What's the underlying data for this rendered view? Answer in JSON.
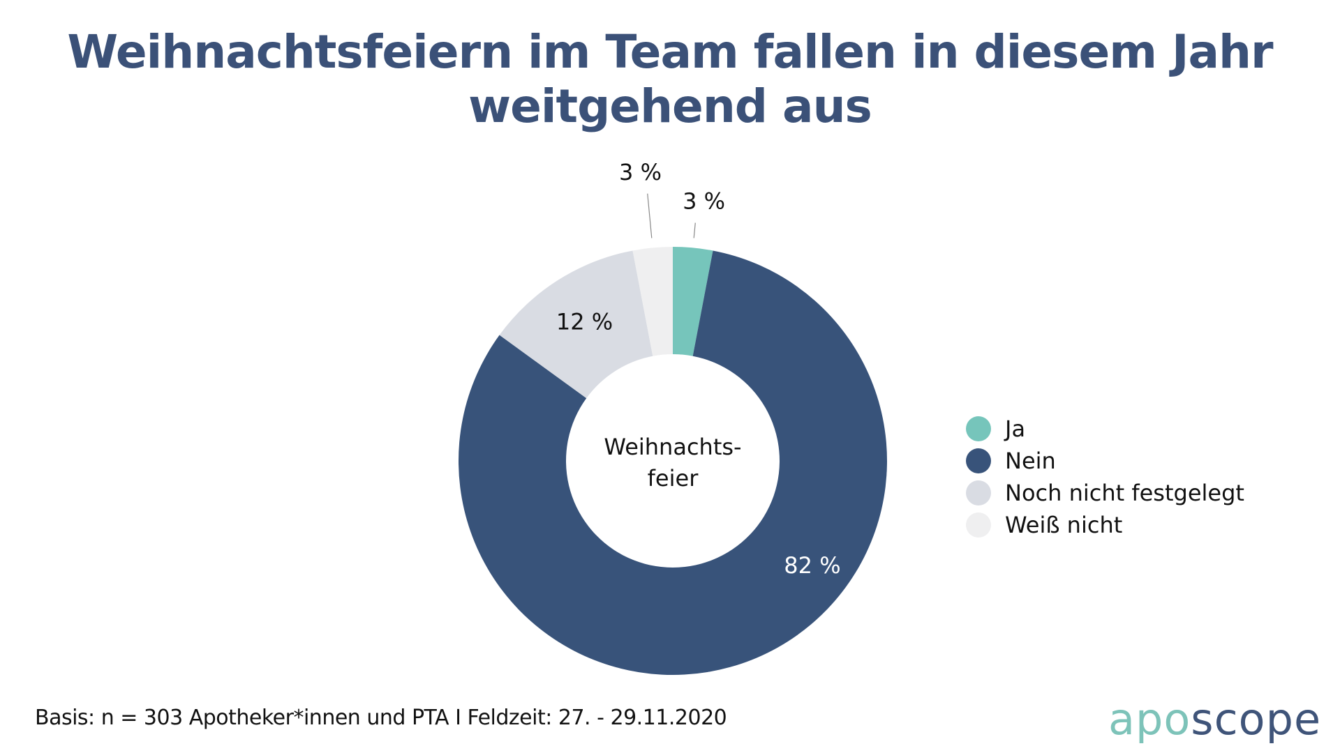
{
  "title": {
    "line1": "Weihnachtsfeiern im Team fallen in diesem Jahr",
    "line2": "weitgehend aus"
  },
  "chart_data": {
    "type": "pie",
    "variant": "donut",
    "title": "Weihnachtsfeiern im Team fallen in diesem Jahr weitgehend aus",
    "center_label": [
      "Weihnachts-",
      "feier"
    ],
    "slices": [
      {
        "name": "Ja",
        "value": 3,
        "label": "3 %",
        "color": "#76c5bb"
      },
      {
        "name": "Nein",
        "value": 82,
        "label": "82 %",
        "color": "#38537a"
      },
      {
        "name": "Noch nicht festgelegt",
        "value": 12,
        "label": "12 %",
        "color": "#d9dce3"
      },
      {
        "name": "Weiß nicht",
        "value": 3,
        "label": "3 %",
        "color": "#efeff0"
      }
    ],
    "legend_position": "right"
  },
  "legend": {
    "items": [
      {
        "label": "Ja",
        "color": "#76c5bb"
      },
      {
        "label": "Nein",
        "color": "#38537a"
      },
      {
        "label": "Noch nicht festgelegt",
        "color": "#d9dce3"
      },
      {
        "label": "Weiß nicht",
        "color": "#efeff0"
      }
    ]
  },
  "footer": {
    "note": "Basis: n = 303 Apotheker*innen und PTA I Feldzeit: 27. - 29.11.2020",
    "logo_part1": "apo",
    "logo_part2": "scope"
  }
}
